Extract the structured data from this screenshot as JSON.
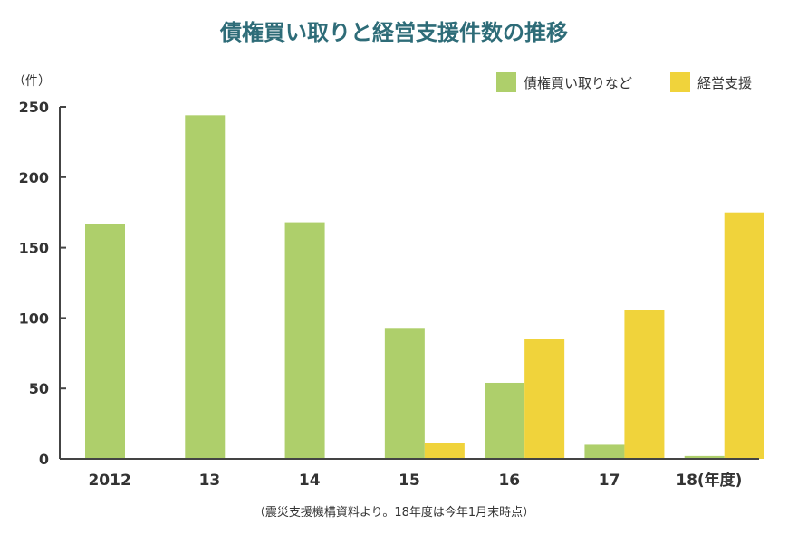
{
  "chart_data": {
    "type": "bar",
    "title": "債権買い取りと経営支援件数の推移",
    "y_unit_label": "（件）",
    "categories": [
      "2012",
      "13",
      "14",
      "15",
      "16",
      "17",
      "18"
    ],
    "x_suffix": "(年度)",
    "series": [
      {
        "name": "債権買い取りなど",
        "color": "#aecf6b",
        "values": [
          167,
          244,
          168,
          93,
          54,
          10,
          2
        ]
      },
      {
        "name": "経営支援",
        "color": "#f0d33b",
        "values": [
          null,
          null,
          null,
          11,
          85,
          106,
          175
        ]
      }
    ],
    "ylim": [
      0,
      250
    ],
    "yticks": [
      0,
      50,
      100,
      150,
      200,
      250
    ],
    "legend_position": "top-right",
    "grid": false,
    "title_color": "#2e6c78",
    "axis_color": "#444444"
  },
  "note": "（震災支援機構資料より。18年度は今年1月末時点）"
}
